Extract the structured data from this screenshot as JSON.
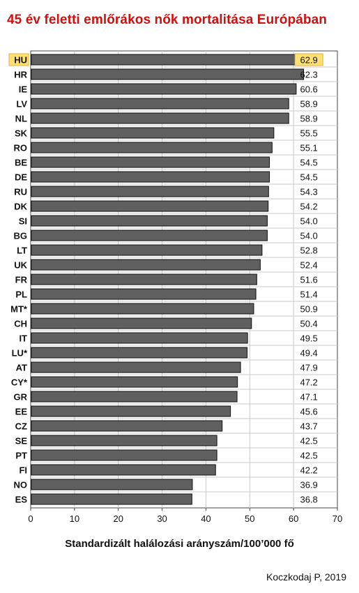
{
  "colors": {
    "title": "#cc1111",
    "bar": "#606060",
    "bar_border": "#111111",
    "highlight": "#ffe070",
    "highlight_border": "#e0b040",
    "grid": "#c8c8c8"
  },
  "chart_data": {
    "type": "bar",
    "orientation": "horizontal",
    "title": "45 év feletti emlőrákos nők mortalitása Európában",
    "xlabel": "Standardizált halálozási arányszám/100’000 fő",
    "ylabel": "",
    "xlim": [
      0,
      70
    ],
    "x_ticks": [
      0,
      10,
      20,
      30,
      40,
      50,
      60,
      70
    ],
    "grid": true,
    "highlighted_categories": [
      "HU"
    ],
    "categories": [
      "HU",
      "HR",
      "IE",
      "LV",
      "NL",
      "SK",
      "RO",
      "BE",
      "DE",
      "RU",
      "DK",
      "SI",
      "BG",
      "LT",
      "UK",
      "FR",
      "PL",
      "MT*",
      "CH",
      "IT",
      "LU*",
      "AT",
      "CY*",
      "GR",
      "EE",
      "CZ",
      "SE",
      "PT",
      "FI",
      "NO",
      "ES"
    ],
    "values": [
      62.9,
      62.3,
      60.6,
      58.9,
      58.9,
      55.5,
      55.1,
      54.5,
      54.5,
      54.3,
      54.2,
      54.0,
      54.0,
      52.8,
      52.4,
      51.6,
      51.4,
      50.9,
      50.4,
      49.5,
      49.4,
      47.9,
      47.2,
      47.1,
      45.6,
      43.7,
      42.5,
      42.5,
      42.2,
      36.9,
      36.8
    ],
    "value_labels": [
      "62.9",
      "62.3",
      "60.6",
      "58.9",
      "58.9",
      "55.5",
      "55.1",
      "54.5",
      "54.5",
      "54.3",
      "54.2",
      "54.0",
      "54.0",
      "52.8",
      "52.4",
      "51.6",
      "51.4",
      "50.9",
      "50.4",
      "49.5",
      "49.4",
      "47.9",
      "47.2",
      "47.1",
      "45.6",
      "43.7",
      "42.5",
      "42.5",
      "42.2",
      "36.9",
      "36.8"
    ]
  },
  "source": "Koczkodaj P, 2019"
}
